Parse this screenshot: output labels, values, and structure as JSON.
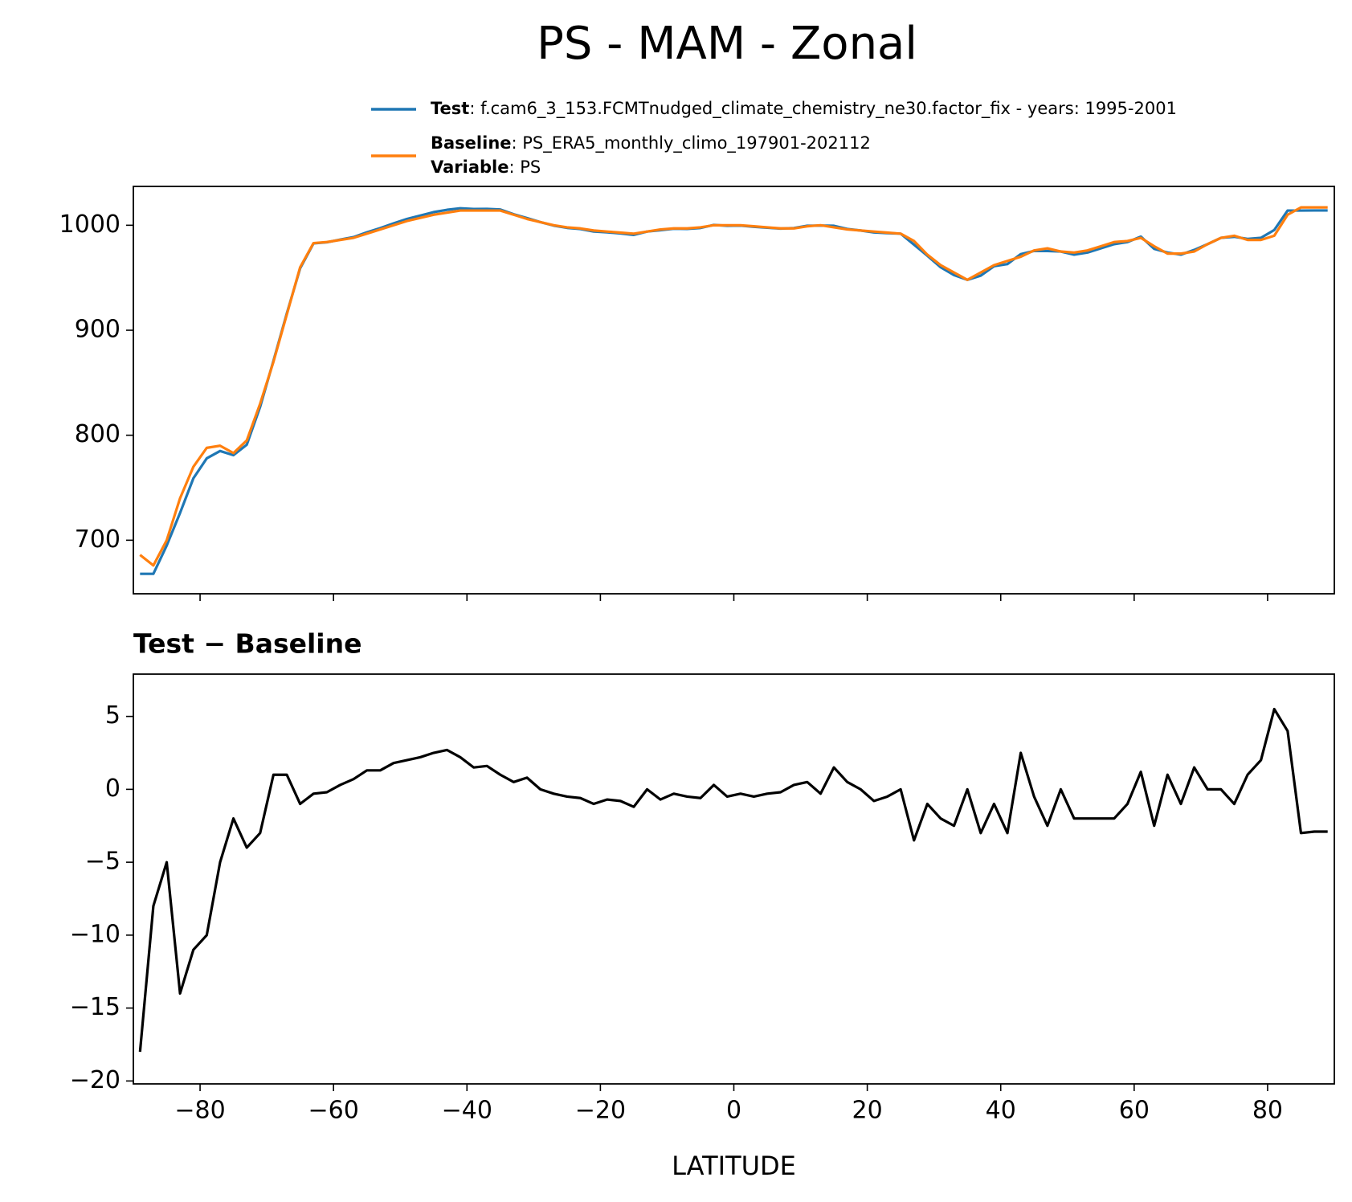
{
  "title": "PS - MAM - Zonal",
  "chart_data": [
    {
      "type": "line",
      "x": [
        -89,
        -87,
        -85,
        -83,
        -81,
        -79,
        -77,
        -75,
        -73,
        -71,
        -69,
        -67,
        -65,
        -63,
        -61,
        -59,
        -57,
        -55,
        -53,
        -51,
        -49,
        -47,
        -45,
        -43,
        -41,
        -39,
        -37,
        -35,
        -33,
        -31,
        -29,
        -27,
        -25,
        -23,
        -21,
        -19,
        -17,
        -15,
        -13,
        -11,
        -9,
        -7,
        -5,
        -3,
        -1,
        1,
        3,
        5,
        7,
        9,
        11,
        13,
        15,
        17,
        19,
        21,
        23,
        25,
        27,
        29,
        31,
        33,
        35,
        37,
        39,
        41,
        43,
        45,
        47,
        49,
        51,
        53,
        55,
        57,
        59,
        61,
        63,
        65,
        67,
        69,
        71,
        73,
        75,
        77,
        79,
        81,
        83,
        85,
        87,
        89
      ],
      "series": [
        {
          "name": "Test",
          "label": ": f.cam6_3_153.FCMTnudged_climate_chemistry_ne30.factor_fix - years: 1995-2001",
          "color": "#1f77b4",
          "values": [
            668,
            668,
            695,
            726,
            759,
            778,
            785,
            781,
            791,
            827,
            871,
            916,
            959,
            982.7,
            983.8,
            986.3,
            988.7,
            993.3,
            997.3,
            1001.8,
            1006,
            1009.2,
            1012.5,
            1014.7,
            1016.2,
            1015.5,
            1015.6,
            1015,
            1010.5,
            1006.8,
            1003,
            999.7,
            997.5,
            996.4,
            994,
            993.3,
            992.2,
            990.8,
            994,
            995.3,
            996.7,
            996.5,
            997.4,
            1000.3,
            999.5,
            999.7,
            998.5,
            997.7,
            996.8,
            997.3,
            999.5,
            999.7,
            999.5,
            996.5,
            995,
            993.2,
            992.5,
            992,
            981.5,
            971,
            960,
            952.5,
            948,
            952,
            961,
            963,
            972.5,
            975.5,
            975.5,
            975,
            972,
            974,
            978,
            982,
            984,
            989.2,
            977.5,
            974,
            972,
            976.5,
            982,
            988,
            989,
            987,
            988,
            995.5,
            1014,
            1014,
            1014.1,
            1014.1
          ]
        },
        {
          "name": "Baseline",
          "label": ": PS_ERA5_monthly_climo_197901-202112",
          "color": "#ff7f0e",
          "values": [
            686,
            676,
            700,
            740,
            770,
            788,
            790,
            783,
            795,
            830,
            870,
            915,
            960,
            983,
            984,
            986,
            988,
            992,
            996,
            1000,
            1004,
            1007,
            1010,
            1012,
            1014,
            1014,
            1014,
            1014,
            1010,
            1006,
            1003,
            1000,
            998,
            997,
            995,
            994,
            993,
            992,
            994,
            996,
            997,
            997,
            998,
            1000,
            1000,
            1000,
            999,
            998,
            997,
            997,
            999,
            1000,
            998,
            996,
            995,
            994,
            993,
            992,
            985,
            972,
            962,
            955,
            948,
            955,
            962,
            966,
            970,
            976,
            978,
            975,
            974,
            976,
            980,
            984,
            985,
            988,
            980,
            973,
            973,
            975,
            982,
            988,
            990,
            986,
            986,
            990,
            1010,
            1017,
            1017,
            1017
          ]
        }
      ],
      "legend_extra": {
        "name": "Variable",
        "label": ": PS"
      },
      "xlim": [
        -90,
        90
      ],
      "xticks": [
        -80,
        -60,
        -40,
        -20,
        0,
        20,
        40,
        60,
        80
      ],
      "show_xtick_labels": false,
      "ylim": [
        649,
        1037
      ],
      "yticks": [
        700,
        800,
        900,
        1000
      ]
    },
    {
      "type": "line",
      "title": "Test − Baseline",
      "xlabel": "LATITUDE",
      "x": [
        -89,
        -87,
        -85,
        -83,
        -81,
        -79,
        -77,
        -75,
        -73,
        -71,
        -69,
        -67,
        -65,
        -63,
        -61,
        -59,
        -57,
        -55,
        -53,
        -51,
        -49,
        -47,
        -45,
        -43,
        -41,
        -39,
        -37,
        -35,
        -33,
        -31,
        -29,
        -27,
        -25,
        -23,
        -21,
        -19,
        -17,
        -15,
        -13,
        -11,
        -9,
        -7,
        -5,
        -3,
        -1,
        1,
        3,
        5,
        7,
        9,
        11,
        13,
        15,
        17,
        19,
        21,
        23,
        25,
        27,
        29,
        31,
        33,
        35,
        37,
        39,
        41,
        43,
        45,
        47,
        49,
        51,
        53,
        55,
        57,
        59,
        61,
        63,
        65,
        67,
        69,
        71,
        73,
        75,
        77,
        79,
        81,
        83,
        85,
        87,
        89
      ],
      "values": [
        -18,
        -8,
        -5,
        -14,
        -11,
        -10,
        -5,
        -2,
        -4,
        -3,
        1,
        1,
        -1,
        -0.3,
        -0.2,
        0.3,
        0.7,
        1.3,
        1.3,
        1.8,
        2,
        2.2,
        2.5,
        2.7,
        2.2,
        1.5,
        1.6,
        1,
        0.5,
        0.8,
        0,
        -0.3,
        -0.5,
        -0.6,
        -1,
        -0.7,
        -0.8,
        -1.2,
        0,
        -0.7,
        -0.3,
        -0.5,
        -0.6,
        0.3,
        -0.5,
        -0.3,
        -0.5,
        -0.3,
        -0.2,
        0.3,
        0.5,
        -0.3,
        1.5,
        0.5,
        0,
        -0.8,
        -0.5,
        0,
        -3.5,
        -1,
        -2,
        -2.5,
        0,
        -3,
        -1,
        -3,
        2.5,
        -0.5,
        -2.5,
        0,
        -2,
        -2,
        -2,
        -2,
        -1,
        1.2,
        -2.5,
        1,
        -1,
        1.5,
        0,
        0,
        -1,
        1,
        2,
        5.5,
        4,
        -3,
        -2.9,
        -2.9
      ],
      "color": "#000000",
      "xlim": [
        -90,
        90
      ],
      "xticks": [
        {
          "value": -80,
          "label": "−80"
        },
        {
          "value": -60,
          "label": "−60"
        },
        {
          "value": -40,
          "label": "−40"
        },
        {
          "value": -20,
          "label": "−20"
        },
        0,
        20,
        40,
        60,
        80
      ],
      "show_xtick_labels": true,
      "ylim": [
        -20.2,
        7.9
      ],
      "yticks": [
        {
          "value": -20,
          "label": "−20"
        },
        {
          "value": -15,
          "label": "−15"
        },
        {
          "value": -10,
          "label": "−10"
        },
        {
          "value": -5,
          "label": "−5"
        },
        0,
        5
      ]
    }
  ]
}
